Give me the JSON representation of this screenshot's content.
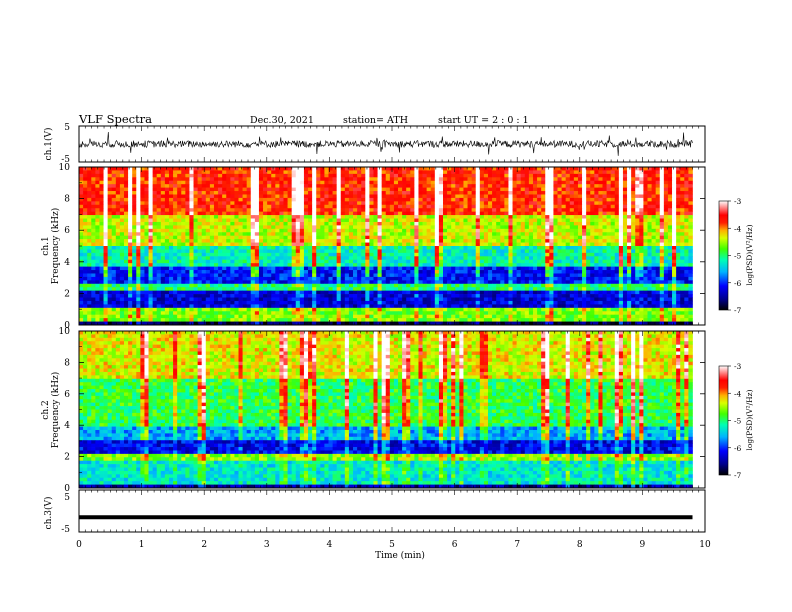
{
  "header": {
    "title": "VLF  Spectra",
    "date": "Dec.30, 2021",
    "station": "station= ATH",
    "start": "start  UT  =    2  : 0   : 1"
  },
  "chart_data": [
    {
      "id": "ch1-waveform",
      "type": "line",
      "ylabel": "ch.1(V)",
      "ylim": [
        -5,
        5
      ],
      "yticks": [
        "5",
        "-5"
      ],
      "xlim": [
        0,
        10
      ],
      "description_free": true,
      "data_extent_min": 9.8,
      "baseline_V": 0.0,
      "noise_amplitude_V": 1.2
    },
    {
      "id": "ch1-spectrogram",
      "type": "heatmap",
      "ylabel_top": "ch.1",
      "ylabel": "Frequency  (kHz)",
      "ylim": [
        0,
        10
      ],
      "yticks": [
        "10",
        "8",
        "6",
        "4",
        "2",
        "0"
      ],
      "xlim": [
        0,
        10
      ],
      "data_extent_min": 9.8,
      "colorbar": {
        "label": "log(PSD)(V²/Hz)",
        "range": [
          -7,
          -3
        ],
        "ticks": [
          "-3",
          "-4",
          "-5",
          "-6",
          "-7"
        ]
      },
      "bands_kHz": [
        {
          "from": 0.0,
          "to": 0.3,
          "level": -6.8
        },
        {
          "from": 0.3,
          "to": 1.0,
          "level": -4.6
        },
        {
          "from": 1.0,
          "to": 2.1,
          "level": -6.3
        },
        {
          "from": 2.1,
          "to": 2.6,
          "level": -5.0
        },
        {
          "from": 2.6,
          "to": 3.7,
          "level": -6.1
        },
        {
          "from": 3.7,
          "to": 5.0,
          "level": -5.2
        },
        {
          "from": 5.0,
          "to": 7.0,
          "level": -4.4
        },
        {
          "from": 7.0,
          "to": 10.0,
          "level": -3.7
        }
      ]
    },
    {
      "id": "ch2-spectrogram",
      "type": "heatmap",
      "ylabel_top": "ch.2",
      "ylabel": "Frequency  (kHz)",
      "ylim": [
        0,
        10
      ],
      "yticks": [
        "10",
        "8",
        "6",
        "4",
        "2",
        "0"
      ],
      "xlim": [
        0,
        10
      ],
      "data_extent_min": 9.8,
      "colorbar": {
        "label": "log(PSD)(V²/Hz)",
        "range": [
          -7,
          -3
        ],
        "ticks": [
          "-3",
          "-4",
          "-5",
          "-6",
          "-7"
        ]
      },
      "bands_kHz": [
        {
          "from": 0.0,
          "to": 0.3,
          "level": -6.5
        },
        {
          "from": 0.3,
          "to": 1.8,
          "level": -5.3
        },
        {
          "from": 1.8,
          "to": 2.2,
          "level": -4.6
        },
        {
          "from": 2.2,
          "to": 3.0,
          "level": -6.2
        },
        {
          "from": 3.0,
          "to": 4.0,
          "level": -5.6
        },
        {
          "from": 4.0,
          "to": 7.0,
          "level": -4.9
        },
        {
          "from": 7.0,
          "to": 10.0,
          "level": -4.3
        }
      ]
    },
    {
      "id": "ch3-waveform",
      "type": "line",
      "ylabel": "ch.3(V)",
      "ylim": [
        -5,
        5
      ],
      "yticks": [
        "5",
        "-5"
      ],
      "xlim": [
        0,
        10
      ],
      "data_extent_min": 9.8,
      "baseline_V": -1.5,
      "xlabel": "Time  (min)",
      "xticks": [
        "0",
        "1",
        "2",
        "3",
        "4",
        "5",
        "6",
        "7",
        "8",
        "9",
        "10"
      ]
    }
  ],
  "colors": {
    "scale": [
      "#000000",
      "#0000aa",
      "#0000ff",
      "#00c8ff",
      "#00ff80",
      "#80ff00",
      "#ffff00",
      "#ff8000",
      "#ff0000",
      "#ffffff"
    ]
  }
}
